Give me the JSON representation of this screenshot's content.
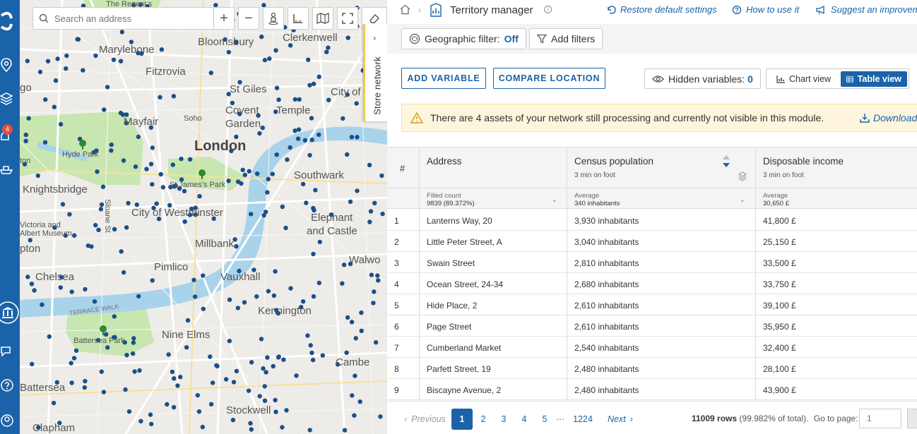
{
  "rail": {
    "notification_count": "4"
  },
  "map": {
    "search_placeholder": "Search an address",
    "zoom_in": "+",
    "zoom_out": "−",
    "store_tab_label": "Store network",
    "labels": {
      "the_regents": "The Regent's",
      "marylebone": "Marylebone",
      "bloomsbury": "Bloomsbury",
      "clerkenwell": "Clerkenwell",
      "fitzrovia": "Fitzrovia",
      "st_giles": "St Giles",
      "city_of": "City of",
      "covent_garden_1": "Covent",
      "covent_garden_2": "Garden",
      "temple": "Temple",
      "mayfair": "Mayfair",
      "soho": "Soho",
      "london": "London",
      "hyde_park": "Hyde Park",
      "southwark": "Southwark",
      "st_james_park": "St James's Park",
      "knightsbridge": "Knightsbridge",
      "city_of_westminster": "City of Westminster",
      "elephant_1": "Elephant",
      "elephant_2": "and Castle",
      "victoria_1": "Victoria and",
      "victoria_2": "Albert Museum",
      "millbank": "Millbank",
      "pimlico": "Pimlico",
      "walworth": "Walwo",
      "chelsea": "Chelsea",
      "vauxhall": "Vauxhall",
      "terrace_walk": "TERRACE WALK",
      "kennington": "Kennington",
      "nine_elms": "Nine Elms",
      "battersea_park": "Battersea Park",
      "camberwell": "Cambe",
      "battersea": "Battersea",
      "stockwell": "Stockwell",
      "clapham": "Clapham",
      "gore": "go",
      "pton": "pton",
      "ton": "ton",
      "sloane": "Sloane St"
    }
  },
  "header": {
    "title": "Territory manager",
    "restore": "Restore default settings",
    "howto": "How to use it",
    "suggest": "Suggest an improvement"
  },
  "filters": {
    "geo_label": "Geographic filter:",
    "geo_value": "Off",
    "add_filters": "Add filters"
  },
  "actions": {
    "add_variable": "ADD VARIABLE",
    "compare_location": "COMPARE LOCATION",
    "hidden_label": "Hidden variables:",
    "hidden_count": "0",
    "chart_view": "Chart view",
    "table_view": "Table view"
  },
  "warning": {
    "text": "There are 4 assets of your network still processing and currently not visible in this module.",
    "download": "Download"
  },
  "table": {
    "col_index": "#",
    "col_address": "Address",
    "col_census": "Census population",
    "col_census_meta": "3 min on foot",
    "col_income": "Disposable income",
    "col_income_meta": "3 min on foot",
    "address_stat_label": "Filled count",
    "address_stat_value": "9839 (89.372%)",
    "census_stat_label": "Average",
    "census_stat_value": "340 inhabitants",
    "income_stat_label": "Average",
    "income_stat_value": "30,650 £",
    "rows": [
      {
        "n": "1",
        "address": "Lanterns Way, 20",
        "census": "3,930 inhabitants",
        "income": "41,800 £"
      },
      {
        "n": "2",
        "address": "Little Peter Street, A",
        "census": "3,040 inhabitants",
        "income": "25,150 £"
      },
      {
        "n": "3",
        "address": "Swain Street",
        "census": "2,810 inhabitants",
        "income": "33,500 £"
      },
      {
        "n": "4",
        "address": "Ocean Street, 24-34",
        "census": "2,680 inhabitants",
        "income": "33,750 £"
      },
      {
        "n": "5",
        "address": "Hide Place, 2",
        "census": "2,610 inhabitants",
        "income": "39,100 £"
      },
      {
        "n": "6",
        "address": "Page Street",
        "census": "2,610 inhabitants",
        "income": "35,950 £"
      },
      {
        "n": "7",
        "address": "Cumberland Market",
        "census": "2,540 inhabitants",
        "income": "32,400 £"
      },
      {
        "n": "8",
        "address": "Parfett Street, 19",
        "census": "2,480 inhabitants",
        "income": "28,100 £"
      },
      {
        "n": "9",
        "address": "Biscayne Avenue, 2",
        "census": "2,480 inhabitants",
        "income": "43,900 £"
      }
    ]
  },
  "pager": {
    "previous": "Previous",
    "pages": [
      "1",
      "2",
      "3",
      "4",
      "5"
    ],
    "ellipsis": "···",
    "last": "1224",
    "next": "Next",
    "rows_count": "11009 rows",
    "rows_pct": "(99.982% of total).",
    "goto_label": "Go to page:",
    "goto_placeholder": "1"
  }
}
